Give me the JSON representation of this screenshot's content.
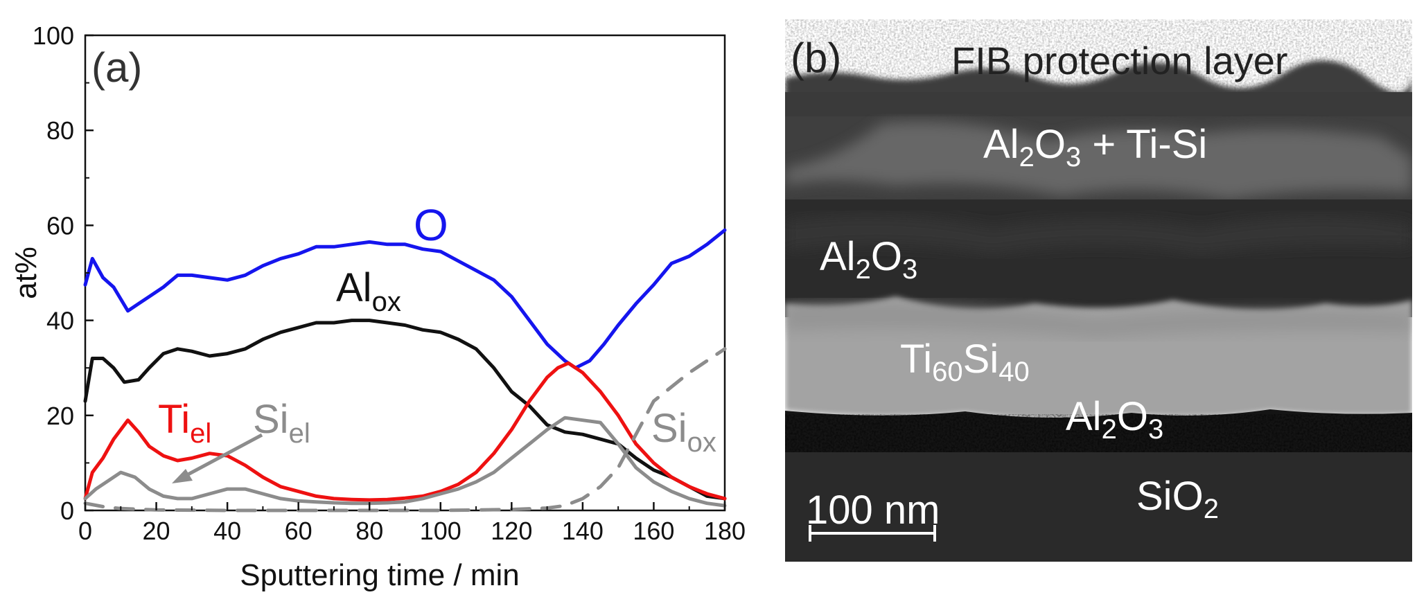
{
  "chart_data": [
    {
      "type": "line",
      "panel_label": "(a)",
      "xlabel": "Sputtering time / min",
      "ylabel": "at%",
      "xlim": [
        0,
        180
      ],
      "ylim": [
        0,
        100
      ],
      "xticks": [
        0,
        20,
        40,
        60,
        80,
        100,
        120,
        140,
        160,
        180
      ],
      "yticks": [
        0,
        20,
        40,
        60,
        80,
        100
      ],
      "grid": false,
      "legend": "none (series labeled directly on the plot)",
      "series": [
        {
          "name": "O",
          "color": "#1515ee",
          "style": "solid",
          "x": [
            0,
            2,
            5,
            8,
            12,
            15,
            18,
            22,
            26,
            30,
            35,
            40,
            45,
            50,
            55,
            60,
            65,
            70,
            75,
            80,
            85,
            90,
            95,
            100,
            105,
            110,
            115,
            120,
            125,
            130,
            135,
            138,
            142,
            146,
            150,
            155,
            160,
            165,
            170,
            175,
            180
          ],
          "y": [
            47.5,
            53,
            49,
            47,
            42,
            43.5,
            45,
            47,
            49.5,
            49.5,
            49,
            48.5,
            49.5,
            51.5,
            53,
            54,
            55.5,
            55.5,
            56,
            56.5,
            56,
            56,
            55,
            54.5,
            52.5,
            50.5,
            48.5,
            45,
            40,
            35,
            31.5,
            30,
            31.5,
            35,
            39,
            43.5,
            47.5,
            52,
            53.5,
            56,
            59
          ]
        },
        {
          "name": "Al",
          "name_subscript": "ox",
          "color": "#111111",
          "style": "solid",
          "x": [
            0,
            2,
            5,
            8,
            11,
            15,
            18,
            22,
            26,
            30,
            35,
            40,
            45,
            50,
            55,
            60,
            65,
            70,
            75,
            80,
            85,
            90,
            95,
            100,
            105,
            110,
            115,
            120,
            125,
            130,
            135,
            140,
            145,
            150,
            155,
            160,
            165,
            170,
            175,
            180
          ],
          "y": [
            23,
            32,
            32,
            30,
            27,
            27.5,
            30,
            33,
            34,
            33.5,
            32.5,
            33,
            34,
            36,
            37.5,
            38.5,
            39.5,
            39.5,
            40,
            40,
            39.5,
            39,
            38,
            37.5,
            36,
            34,
            30,
            25,
            22,
            18,
            16.5,
            16,
            15,
            14,
            11,
            8.5,
            7,
            5,
            3,
            2.5
          ]
        },
        {
          "name": "Ti",
          "name_subscript": "el",
          "color": "#ee1111",
          "style": "solid",
          "x": [
            0,
            2,
            5,
            8,
            12,
            15,
            18,
            22,
            26,
            30,
            35,
            40,
            45,
            50,
            55,
            60,
            65,
            70,
            75,
            80,
            85,
            90,
            95,
            100,
            105,
            110,
            115,
            120,
            125,
            130,
            133,
            136,
            140,
            145,
            150,
            155,
            160,
            165,
            170,
            175,
            180
          ],
          "y": [
            2.5,
            8,
            11,
            15,
            19,
            16.5,
            13.5,
            11.5,
            10.5,
            11,
            12,
            11.5,
            9.5,
            7,
            5,
            4,
            3,
            2.5,
            2.3,
            2.2,
            2.3,
            2.6,
            3,
            4,
            5.5,
            8,
            12,
            17,
            23,
            28,
            30,
            31,
            29,
            25,
            20,
            14,
            10,
            7,
            5,
            3.5,
            2.5
          ]
        },
        {
          "name": "Si",
          "name_subscript": "el",
          "color": "#8c8c8c",
          "style": "solid",
          "x": [
            0,
            3,
            6,
            10,
            14,
            18,
            22,
            26,
            30,
            35,
            40,
            45,
            50,
            55,
            60,
            65,
            70,
            75,
            80,
            85,
            90,
            95,
            100,
            105,
            110,
            115,
            120,
            125,
            130,
            135,
            140,
            145,
            150,
            155,
            160,
            165,
            170,
            175,
            180
          ],
          "y": [
            2.5,
            4.5,
            6,
            8,
            7,
            4.5,
            3,
            2.5,
            2.5,
            3.5,
            4.5,
            4.5,
            3.5,
            2.5,
            2,
            1.8,
            1.6,
            1.5,
            1.5,
            1.6,
            1.8,
            2.5,
            3.5,
            4.5,
            6,
            8,
            11,
            14,
            17,
            19.5,
            19,
            18.5,
            14,
            9,
            6,
            4,
            2.5,
            1.5,
            1
          ]
        },
        {
          "name": "Si",
          "name_subscript": "ox",
          "color": "#8c8c8c",
          "style": "dashed",
          "x": [
            0,
            5,
            10,
            20,
            40,
            60,
            80,
            100,
            120,
            130,
            135,
            140,
            145,
            150,
            155,
            160,
            170,
            180
          ],
          "y": [
            1.5,
            0.8,
            0.4,
            0.1,
            0,
            0,
            0,
            0,
            0.2,
            0.5,
            1,
            2.5,
            5,
            9,
            16,
            23,
            29,
            34
          ]
        }
      ],
      "annotations": [
        {
          "text": "O",
          "color": "#1515ee"
        },
        {
          "text": "Al",
          "subscript": "ox",
          "color": "#111111"
        },
        {
          "text": "Ti",
          "subscript": "el",
          "color": "#ee1111"
        },
        {
          "text": "Si",
          "subscript": "el",
          "color": "#8c8c8c",
          "arrow": true
        },
        {
          "text": "Si",
          "subscript": "ox",
          "color": "#8c8c8c"
        }
      ]
    }
  ],
  "micrograph": {
    "panel_label": "(b)",
    "labels": {
      "fib": "FIB protection layer",
      "layer1_a": "Al",
      "layer1_a_sub": "2",
      "layer1_b": "O",
      "layer1_b_sub": "3",
      "layer1_c": " + Ti-Si",
      "layer2_a": "Al",
      "layer2_a_sub": "2",
      "layer2_b": "O",
      "layer2_b_sub": "3",
      "tisi_a": "Ti",
      "tisi_a_sub": "60",
      "tisi_b": "Si",
      "tisi_b_sub": "40",
      "layer3_a": "Al",
      "layer3_a_sub": "2",
      "layer3_b": "O",
      "layer3_b_sub": "3",
      "sio2_a": "SiO",
      "sio2_a_sub": "2",
      "scalebar": "100 nm"
    }
  }
}
